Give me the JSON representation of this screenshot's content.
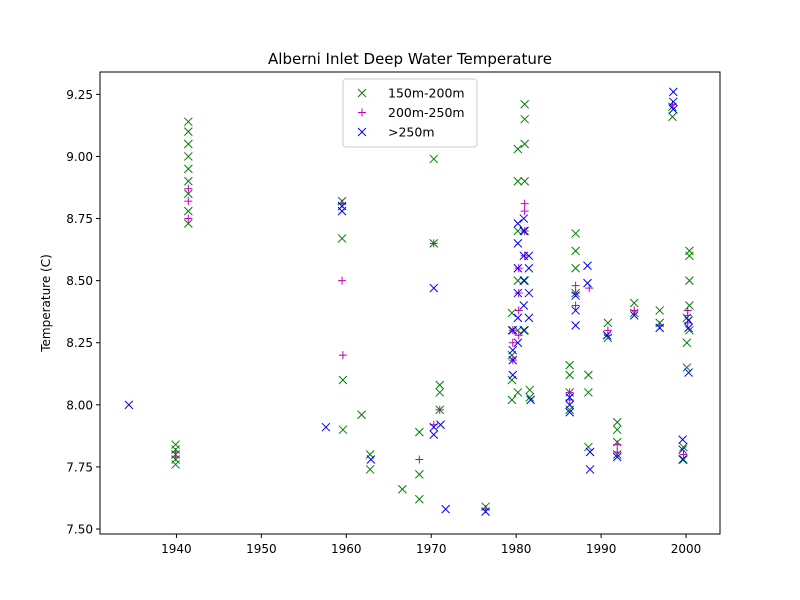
{
  "chart_data": {
    "type": "scatter",
    "title": "Alberni Inlet Deep Water Temperature",
    "xlabel": "",
    "ylabel": "Temperature (C)",
    "xlim": [
      1931,
      2004
    ],
    "ylim": [
      7.48,
      9.34
    ],
    "xticks": [
      1940,
      1950,
      1960,
      1970,
      1980,
      1990,
      2000
    ],
    "yticks": [
      7.5,
      7.75,
      8.0,
      8.25,
      8.5,
      8.75,
      9.0,
      9.25
    ],
    "ytick_labels": [
      "7.50",
      "7.75",
      "8.00",
      "8.25",
      "8.50",
      "8.75",
      "9.00",
      "9.25"
    ],
    "legend": {
      "location": "upper center"
    },
    "series": [
      {
        "name": "150m-200m",
        "marker": "x",
        "color": "#008000",
        "points": [
          [
            1939.9,
            7.76
          ],
          [
            1939.9,
            7.78
          ],
          [
            1939.9,
            7.8
          ],
          [
            1939.9,
            7.82
          ],
          [
            1939.9,
            7.84
          ],
          [
            1941.4,
            8.73
          ],
          [
            1941.4,
            8.78
          ],
          [
            1941.4,
            8.85
          ],
          [
            1941.4,
            8.9
          ],
          [
            1941.4,
            8.95
          ],
          [
            1941.4,
            9.0
          ],
          [
            1941.4,
            9.05
          ],
          [
            1941.4,
            9.1
          ],
          [
            1941.4,
            9.14
          ],
          [
            1959.5,
            8.82
          ],
          [
            1959.5,
            8.67
          ],
          [
            1959.6,
            8.1
          ],
          [
            1959.6,
            7.9
          ],
          [
            1961.8,
            7.96
          ],
          [
            1962.8,
            7.8
          ],
          [
            1962.8,
            7.74
          ],
          [
            1966.6,
            7.66
          ],
          [
            1968.6,
            7.89
          ],
          [
            1968.6,
            7.72
          ],
          [
            1968.6,
            7.62
          ],
          [
            1970.3,
            8.99
          ],
          [
            1970.3,
            8.65
          ],
          [
            1971.0,
            8.08
          ],
          [
            1971.0,
            8.05
          ],
          [
            1971.0,
            7.98
          ],
          [
            1976.4,
            7.59
          ],
          [
            1979.5,
            8.02
          ],
          [
            1979.5,
            8.1
          ],
          [
            1979.5,
            8.2
          ],
          [
            1979.5,
            8.3
          ],
          [
            1979.5,
            8.37
          ],
          [
            1980.2,
            8.05
          ],
          [
            1980.2,
            8.3
          ],
          [
            1980.2,
            8.5
          ],
          [
            1980.2,
            8.7
          ],
          [
            1980.2,
            8.9
          ],
          [
            1980.2,
            9.03
          ],
          [
            1981.0,
            8.3
          ],
          [
            1981.0,
            8.5
          ],
          [
            1981.0,
            8.7
          ],
          [
            1981.0,
            8.9
          ],
          [
            1981.0,
            9.05
          ],
          [
            1981.0,
            9.15
          ],
          [
            1981.0,
            9.21
          ],
          [
            1981.6,
            8.03
          ],
          [
            1981.6,
            8.06
          ],
          [
            1986.3,
            7.98
          ],
          [
            1986.3,
            8.05
          ],
          [
            1986.3,
            8.12
          ],
          [
            1986.3,
            8.16
          ],
          [
            1987.0,
            8.45
          ],
          [
            1987.0,
            8.55
          ],
          [
            1987.0,
            8.62
          ],
          [
            1987.0,
            8.69
          ],
          [
            1988.5,
            8.12
          ],
          [
            1988.5,
            8.05
          ],
          [
            1988.5,
            7.83
          ],
          [
            1990.8,
            8.27
          ],
          [
            1990.8,
            8.33
          ],
          [
            1991.9,
            7.8
          ],
          [
            1991.9,
            7.85
          ],
          [
            1991.9,
            7.9
          ],
          [
            1991.9,
            7.93
          ],
          [
            1993.9,
            8.37
          ],
          [
            1993.9,
            8.41
          ],
          [
            1996.9,
            8.33
          ],
          [
            1996.9,
            8.38
          ],
          [
            1998.4,
            9.16
          ],
          [
            1998.4,
            9.2
          ],
          [
            1999.7,
            7.78
          ],
          [
            1999.7,
            7.83
          ],
          [
            2000.1,
            8.15
          ],
          [
            2000.1,
            8.25
          ],
          [
            2000.1,
            8.35
          ],
          [
            2000.4,
            8.3
          ],
          [
            2000.4,
            8.4
          ],
          [
            2000.4,
            8.5
          ],
          [
            2000.4,
            8.6
          ],
          [
            2000.4,
            8.62
          ]
        ]
      },
      {
        "name": "200m-250m",
        "marker": "+",
        "color": "#c000c0",
        "points": [
          [
            1939.9,
            7.79
          ],
          [
            1939.9,
            7.81
          ],
          [
            1941.4,
            8.75
          ],
          [
            1941.4,
            8.82
          ],
          [
            1941.4,
            8.87
          ],
          [
            1959.5,
            8.81
          ],
          [
            1959.5,
            8.5
          ],
          [
            1959.6,
            8.2
          ],
          [
            1968.6,
            7.78
          ],
          [
            1970.3,
            8.65
          ],
          [
            1970.3,
            7.92
          ],
          [
            1971.0,
            7.98
          ],
          [
            1976.4,
            7.58
          ],
          [
            1979.6,
            8.18
          ],
          [
            1979.6,
            8.25
          ],
          [
            1979.6,
            8.3
          ],
          [
            1980.3,
            8.28
          ],
          [
            1980.3,
            8.38
          ],
          [
            1980.3,
            8.45
          ],
          [
            1980.3,
            8.55
          ],
          [
            1981.0,
            8.6
          ],
          [
            1981.0,
            8.7
          ],
          [
            1981.0,
            8.78
          ],
          [
            1981.0,
            8.81
          ],
          [
            1986.3,
            8.02
          ],
          [
            1986.3,
            8.05
          ],
          [
            1987.0,
            8.4
          ],
          [
            1987.0,
            8.45
          ],
          [
            1987.0,
            8.48
          ],
          [
            1988.6,
            8.47
          ],
          [
            1990.8,
            8.28
          ],
          [
            1990.8,
            8.3
          ],
          [
            1991.9,
            7.81
          ],
          [
            1991.9,
            7.84
          ],
          [
            1993.9,
            8.38
          ],
          [
            1996.9,
            8.32
          ],
          [
            1998.4,
            9.21
          ],
          [
            1999.7,
            7.8
          ],
          [
            2000.2,
            8.33
          ],
          [
            2000.2,
            8.36
          ],
          [
            2000.2,
            8.38
          ]
        ]
      },
      {
        "name": ">250m",
        "marker": "x",
        "color": "#0000ff",
        "points": [
          [
            1934.4,
            8.0
          ],
          [
            1959.5,
            8.78
          ],
          [
            1959.5,
            8.8
          ],
          [
            1957.6,
            7.91
          ],
          [
            1962.9,
            7.78
          ],
          [
            1970.3,
            8.47
          ],
          [
            1970.3,
            7.88
          ],
          [
            1970.3,
            7.91
          ],
          [
            1971.1,
            7.92
          ],
          [
            1971.7,
            7.58
          ],
          [
            1976.4,
            7.57
          ],
          [
            1979.6,
            8.12
          ],
          [
            1979.6,
            8.18
          ],
          [
            1979.6,
            8.22
          ],
          [
            1979.6,
            8.3
          ],
          [
            1980.2,
            8.25
          ],
          [
            1980.2,
            8.35
          ],
          [
            1980.2,
            8.45
          ],
          [
            1980.2,
            8.55
          ],
          [
            1980.2,
            8.65
          ],
          [
            1980.2,
            8.73
          ],
          [
            1980.9,
            8.3
          ],
          [
            1980.9,
            8.4
          ],
          [
            1980.9,
            8.5
          ],
          [
            1980.9,
            8.6
          ],
          [
            1980.9,
            8.7
          ],
          [
            1980.9,
            8.75
          ],
          [
            1981.5,
            8.35
          ],
          [
            1981.5,
            8.45
          ],
          [
            1981.5,
            8.55
          ],
          [
            1981.5,
            8.6
          ],
          [
            1981.7,
            8.02
          ],
          [
            1986.3,
            7.97
          ],
          [
            1986.3,
            8.0
          ],
          [
            1986.3,
            8.03
          ],
          [
            1987.0,
            8.32
          ],
          [
            1987.0,
            8.38
          ],
          [
            1987.0,
            8.44
          ],
          [
            1988.4,
            8.56
          ],
          [
            1988.4,
            8.49
          ],
          [
            1988.7,
            7.81
          ],
          [
            1988.7,
            7.74
          ],
          [
            1990.7,
            8.28
          ],
          [
            1991.9,
            7.79
          ],
          [
            1993.9,
            8.36
          ],
          [
            1996.9,
            8.31
          ],
          [
            1998.5,
            9.19
          ],
          [
            1998.5,
            9.22
          ],
          [
            1998.5,
            9.26
          ],
          [
            1999.6,
            7.78
          ],
          [
            1999.6,
            7.82
          ],
          [
            1999.6,
            7.86
          ],
          [
            2000.3,
            8.13
          ],
          [
            2000.3,
            8.31
          ],
          [
            2000.3,
            8.34
          ]
        ]
      }
    ]
  }
}
